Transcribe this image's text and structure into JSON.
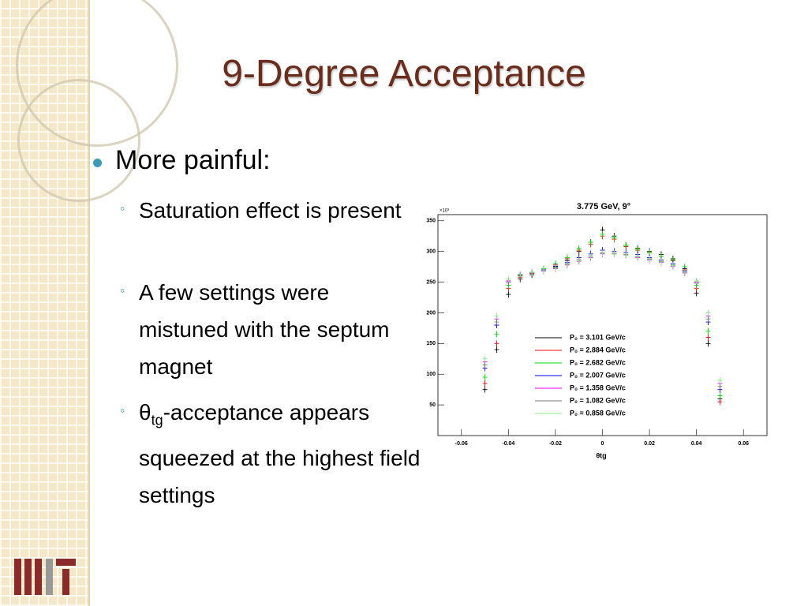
{
  "slide": {
    "title": "9-Degree Acceptance",
    "bullet": "More painful:",
    "sub_bullets": [
      "Saturation effect is present",
      "A few settings were mistuned with the septum magnet"
    ],
    "last_bullet": {
      "symbol": "θ",
      "subscript": "tg",
      "text": "-acceptance appears squeezed at the highest field settings"
    }
  },
  "chart_data": {
    "type": "scatter",
    "title": "3.775 GeV, 9°",
    "x_label": "θtg",
    "y_multiplier": "×10³",
    "x": [
      -0.05,
      -0.045,
      -0.04,
      -0.035,
      -0.03,
      -0.025,
      -0.02,
      -0.015,
      -0.01,
      -0.005,
      0,
      0.005,
      0.01,
      0.015,
      0.02,
      0.025,
      0.03,
      0.035,
      0.04,
      0.045,
      0.05
    ],
    "xlim": [
      -0.07,
      0.07
    ],
    "xticks": [
      -0.06,
      -0.04,
      -0.02,
      0,
      0.02,
      0.04,
      0.06
    ],
    "ylim": [
      0,
      360
    ],
    "yticks": [
      50,
      100,
      150,
      200,
      250,
      300,
      350
    ],
    "series": [
      {
        "name": "P₀ = 3.101 GeV/c",
        "color": "#000000",
        "values": [
          75,
          140,
          230,
          255,
          262,
          268,
          275,
          285,
          300,
          315,
          335,
          325,
          310,
          305,
          300,
          295,
          288,
          272,
          232,
          150,
          60
        ]
      },
      {
        "name": "P₀ = 2.884 GeV/c",
        "color": "#ff0000",
        "values": [
          85,
          150,
          240,
          258,
          264,
          270,
          278,
          288,
          302,
          312,
          325,
          320,
          308,
          302,
          298,
          292,
          285,
          270,
          240,
          160,
          55
        ]
      },
      {
        "name": "P₀ = 2.682 GeV/c",
        "color": "#00dd00",
        "values": [
          95,
          165,
          245,
          260,
          265,
          272,
          280,
          290,
          305,
          315,
          328,
          322,
          310,
          304,
          298,
          292,
          286,
          275,
          245,
          170,
          65
        ]
      },
      {
        "name": "P₀ = 2.007 GeV/c",
        "color": "#0000ff",
        "values": [
          110,
          180,
          250,
          262,
          266,
          270,
          276,
          282,
          290,
          296,
          302,
          300,
          298,
          295,
          290,
          286,
          280,
          268,
          250,
          185,
          75
        ]
      },
      {
        "name": "P₀ = 1.358 GeV/c",
        "color": "#ff00ff",
        "values": [
          120,
          190,
          252,
          262,
          265,
          268,
          272,
          278,
          284,
          290,
          296,
          296,
          294,
          290,
          286,
          282,
          276,
          265,
          250,
          195,
          85
        ]
      },
      {
        "name": "P₀ = 1.082 GeV/c",
        "color": "#777777",
        "values": [
          115,
          185,
          250,
          261,
          265,
          269,
          274,
          280,
          287,
          293,
          298,
          297,
          295,
          292,
          288,
          284,
          278,
          266,
          248,
          190,
          80
        ]
      },
      {
        "name": "P₀ = 0.858 GeV/c",
        "color": "#88ee88",
        "values": [
          125,
          195,
          255,
          263,
          266,
          269,
          273,
          279,
          285,
          291,
          297,
          296,
          294,
          291,
          287,
          283,
          277,
          266,
          252,
          200,
          90
        ]
      }
    ]
  }
}
